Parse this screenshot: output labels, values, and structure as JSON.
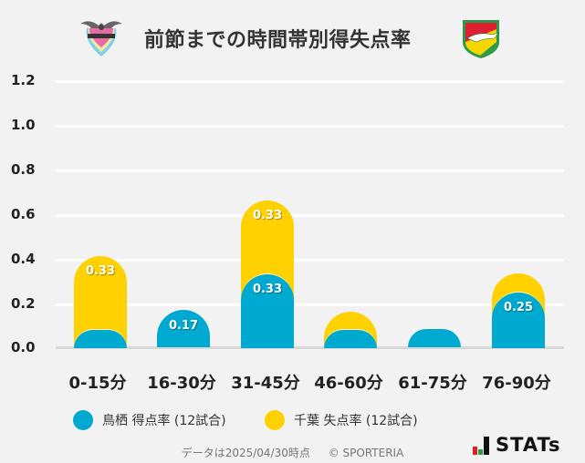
{
  "header": {
    "title": "前節までの時間帯別得失点率",
    "left_logo": "sagan-tosu-crest-icon",
    "right_logo": "jef-united-chiba-crest-icon"
  },
  "chart_data": {
    "type": "bar",
    "stacked": true,
    "title": "前節までの時間帯別得失点率",
    "xlabel": "",
    "ylabel": "",
    "ylim": [
      0,
      1.2
    ],
    "yticks": [
      "0.0",
      "0.2",
      "0.4",
      "0.6",
      "0.8",
      "1.0",
      "1.2"
    ],
    "grid": true,
    "legend_position": "bottom",
    "categories": [
      "0-15分",
      "16-30分",
      "31-45分",
      "46-60分",
      "61-75分",
      "76-90分"
    ],
    "series": [
      {
        "name": "鳥栖 得点率 (12試合)",
        "color": "#00a9d0",
        "values": [
          0.08,
          0.17,
          0.33,
          0.08,
          0.08,
          0.25
        ],
        "labels": [
          "",
          "0.17",
          "0.33",
          "",
          "",
          "0.25"
        ]
      },
      {
        "name": "千葉 失点率 (12試合)",
        "color": "#ffd100",
        "values": [
          0.33,
          0,
          0.33,
          0.08,
          0,
          0.08
        ],
        "labels": [
          "0.33",
          "",
          "0.33",
          "",
          "",
          ""
        ]
      }
    ]
  },
  "legend": {
    "items": [
      {
        "label": "鳥栖 得点率 (12試合)",
        "color": "#00a9d0"
      },
      {
        "label": "千葉 失点率 (12試合)",
        "color": "#ffd100"
      }
    ]
  },
  "footer": {
    "date_note": "データは2025/04/30時点",
    "copyright": "© SPORTERIA",
    "brand": "STATs"
  }
}
